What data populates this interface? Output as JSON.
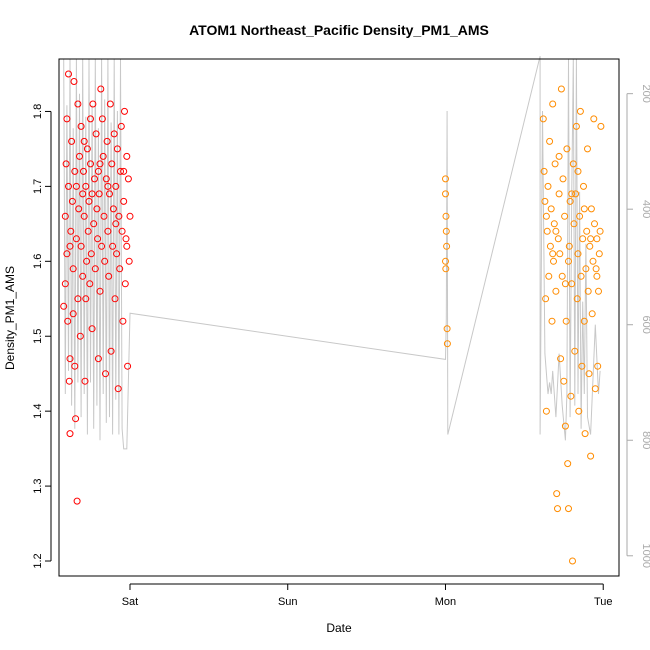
{
  "chart_data": {
    "type": "scatter",
    "title": "ATOM1 Northeast_Pacific Density_PM1_AMS",
    "xlabel": "Date",
    "ylabel": "Density_PM1_AMS",
    "x_axis": {
      "type": "day",
      "ticks": [
        "Sat",
        "Sun",
        "Mon",
        "Tue"
      ],
      "tick_days": [
        0,
        1,
        2,
        3
      ],
      "range_days": [
        -0.45,
        3.1
      ]
    },
    "y_axis": {
      "ticks": [
        "1.2",
        "1.3",
        "1.4",
        "1.5",
        "1.6",
        "1.7",
        "1.8"
      ],
      "range": [
        1.18,
        1.87
      ]
    },
    "y2_axis": {
      "ticks": [
        "200",
        "400",
        "600",
        "800",
        "1000"
      ],
      "reversed": true,
      "range": [
        140,
        1035
      ],
      "color": "#aaaaaa"
    },
    "grid": false,
    "legend": "none",
    "series": [
      {
        "color": "#ff0000",
        "points": [
          [
            -0.42,
            1.54
          ],
          [
            -0.41,
            1.57
          ],
          [
            -0.41,
            1.66
          ],
          [
            -0.405,
            1.73
          ],
          [
            -0.4,
            1.79
          ],
          [
            -0.4,
            1.61
          ],
          [
            -0.395,
            1.52
          ],
          [
            -0.39,
            1.85
          ],
          [
            -0.39,
            1.7
          ],
          [
            -0.385,
            1.44
          ],
          [
            -0.38,
            1.47
          ],
          [
            -0.38,
            1.37
          ],
          [
            -0.375,
            1.64
          ],
          [
            -0.37,
            1.76
          ],
          [
            -0.365,
            1.68
          ],
          [
            -0.36,
            1.59
          ],
          [
            -0.36,
            1.53
          ],
          [
            -0.355,
            1.84
          ],
          [
            -0.35,
            1.72
          ],
          [
            -0.35,
            1.46
          ],
          [
            -0.345,
            1.39
          ],
          [
            -0.34,
            1.63
          ],
          [
            -0.335,
            1.28
          ],
          [
            -0.33,
            1.81
          ],
          [
            -0.33,
            1.55
          ],
          [
            -0.325,
            1.67
          ],
          [
            -0.32,
            1.74
          ],
          [
            -0.315,
            1.5
          ],
          [
            -0.31,
            1.78
          ],
          [
            -0.31,
            1.62
          ],
          [
            -0.3,
            1.69
          ],
          [
            -0.3,
            1.58
          ],
          [
            -0.295,
            1.72
          ],
          [
            -0.29,
            1.66
          ],
          [
            -0.285,
            1.44
          ],
          [
            -0.28,
            1.55
          ],
          [
            -0.28,
            1.7
          ],
          [
            -0.275,
            1.6
          ],
          [
            -0.27,
            1.75
          ],
          [
            -0.265,
            1.64
          ],
          [
            -0.26,
            1.68
          ],
          [
            -0.255,
            1.57
          ],
          [
            -0.25,
            1.79
          ],
          [
            -0.25,
            1.73
          ],
          [
            -0.245,
            1.61
          ],
          [
            -0.24,
            1.51
          ],
          [
            -0.235,
            1.81
          ],
          [
            -0.23,
            1.65
          ],
          [
            -0.225,
            1.71
          ],
          [
            -0.22,
            1.59
          ],
          [
            -0.215,
            1.77
          ],
          [
            -0.21,
            1.67
          ],
          [
            -0.205,
            1.63
          ],
          [
            -0.2,
            1.47
          ],
          [
            -0.2,
            1.72
          ],
          [
            -0.195,
            1.69
          ],
          [
            -0.19,
            1.56
          ],
          [
            -0.185,
            1.83
          ],
          [
            -0.18,
            1.62
          ],
          [
            -0.175,
            1.79
          ],
          [
            -0.17,
            1.74
          ],
          [
            -0.165,
            1.66
          ],
          [
            -0.16,
            1.6
          ],
          [
            -0.155,
            1.45
          ],
          [
            -0.15,
            1.71
          ],
          [
            -0.145,
            1.76
          ],
          [
            -0.14,
            1.64
          ],
          [
            -0.135,
            1.58
          ],
          [
            -0.13,
            1.69
          ],
          [
            -0.125,
            1.81
          ],
          [
            -0.12,
            1.48
          ],
          [
            -0.115,
            1.73
          ],
          [
            -0.11,
            1.62
          ],
          [
            -0.105,
            1.67
          ],
          [
            -0.1,
            1.77
          ],
          [
            -0.095,
            1.55
          ],
          [
            -0.09,
            1.7
          ],
          [
            -0.085,
            1.61
          ],
          [
            -0.08,
            1.75
          ],
          [
            -0.075,
            1.43
          ],
          [
            -0.07,
            1.66
          ],
          [
            -0.065,
            1.59
          ],
          [
            -0.06,
            1.72
          ],
          [
            -0.055,
            1.78
          ],
          [
            -0.05,
            1.64
          ],
          [
            -0.045,
            1.52
          ],
          [
            -0.04,
            1.68
          ],
          [
            -0.035,
            1.8
          ],
          [
            -0.03,
            1.57
          ],
          [
            -0.025,
            1.63
          ],
          [
            -0.02,
            1.74
          ],
          [
            -0.015,
            1.46
          ],
          [
            -0.01,
            1.71
          ],
          [
            -0.005,
            1.6
          ],
          [
            0.0,
            1.66
          ],
          [
            -0.38,
            1.62
          ],
          [
            -0.34,
            1.7
          ],
          [
            -0.29,
            1.76
          ],
          [
            -0.24,
            1.69
          ],
          [
            -0.19,
            1.73
          ],
          [
            -0.14,
            1.7
          ],
          [
            -0.09,
            1.65
          ],
          [
            -0.04,
            1.72
          ],
          [
            -0.02,
            1.62
          ]
        ]
      },
      {
        "color": "#ff8c00",
        "points": [
          [
            2.0,
            1.71
          ],
          [
            2.0,
            1.69
          ],
          [
            2.003,
            1.66
          ],
          [
            2.005,
            1.64
          ],
          [
            2.007,
            1.62
          ],
          [
            2.0,
            1.6
          ],
          [
            2.002,
            1.59
          ],
          [
            2.01,
            1.51
          ],
          [
            2.012,
            1.49
          ],
          [
            2.62,
            1.79
          ],
          [
            2.625,
            1.72
          ],
          [
            2.63,
            1.68
          ],
          [
            2.635,
            1.55
          ],
          [
            2.64,
            1.4
          ],
          [
            2.645,
            1.64
          ],
          [
            2.65,
            1.7
          ],
          [
            2.655,
            1.58
          ],
          [
            2.66,
            1.76
          ],
          [
            2.665,
            1.62
          ],
          [
            2.67,
            1.67
          ],
          [
            2.675,
            1.52
          ],
          [
            2.68,
            1.81
          ],
          [
            2.685,
            1.6
          ],
          [
            2.69,
            1.65
          ],
          [
            2.695,
            1.73
          ],
          [
            2.7,
            1.56
          ],
          [
            2.705,
            1.29
          ],
          [
            2.71,
            1.27
          ],
          [
            2.715,
            1.63
          ],
          [
            2.72,
            1.69
          ],
          [
            2.725,
            1.61
          ],
          [
            2.73,
            1.47
          ],
          [
            2.735,
            1.83
          ],
          [
            2.74,
            1.58
          ],
          [
            2.745,
            1.71
          ],
          [
            2.75,
            1.44
          ],
          [
            2.755,
            1.66
          ],
          [
            2.76,
            1.38
          ],
          [
            2.765,
            1.52
          ],
          [
            2.77,
            1.75
          ],
          [
            2.775,
            1.33
          ],
          [
            2.78,
            1.27
          ],
          [
            2.785,
            1.62
          ],
          [
            2.79,
            1.68
          ],
          [
            2.795,
            1.42
          ],
          [
            2.8,
            1.57
          ],
          [
            2.805,
            1.2
          ],
          [
            2.81,
            1.73
          ],
          [
            2.815,
            1.65
          ],
          [
            2.82,
            1.48
          ],
          [
            2.825,
            1.69
          ],
          [
            2.83,
            1.78
          ],
          [
            2.835,
            1.55
          ],
          [
            2.84,
            1.61
          ],
          [
            2.845,
            1.4
          ],
          [
            2.85,
            1.66
          ],
          [
            2.855,
            1.8
          ],
          [
            2.86,
            1.58
          ],
          [
            2.865,
            1.46
          ],
          [
            2.87,
            1.63
          ],
          [
            2.875,
            1.7
          ],
          [
            2.88,
            1.52
          ],
          [
            2.885,
            1.37
          ],
          [
            2.89,
            1.59
          ],
          [
            2.895,
            1.64
          ],
          [
            2.9,
            1.75
          ],
          [
            2.905,
            1.56
          ],
          [
            2.91,
            1.45
          ],
          [
            2.915,
            1.62
          ],
          [
            2.92,
            1.34
          ],
          [
            2.925,
            1.67
          ],
          [
            2.93,
            1.53
          ],
          [
            2.935,
            1.6
          ],
          [
            2.94,
            1.79
          ],
          [
            2.945,
            1.65
          ],
          [
            2.95,
            1.43
          ],
          [
            2.955,
            1.59
          ],
          [
            2.96,
            1.63
          ],
          [
            2.965,
            1.46
          ],
          [
            2.97,
            1.56
          ],
          [
            2.975,
            1.61
          ],
          [
            2.98,
            1.64
          ],
          [
            2.985,
            1.78
          ],
          [
            2.64,
            1.66
          ],
          [
            2.68,
            1.61
          ],
          [
            2.72,
            1.74
          ],
          [
            2.76,
            1.57
          ],
          [
            2.8,
            1.69
          ],
          [
            2.84,
            1.72
          ],
          [
            2.88,
            1.67
          ],
          [
            2.92,
            1.63
          ],
          [
            2.96,
            1.58
          ],
          [
            2.7,
            1.64
          ],
          [
            2.78,
            1.6
          ]
        ]
      },
      {
        "color": "#c8c8c8",
        "axis": "y2",
        "points": [
          [
            -0.42,
            140
          ],
          [
            -0.41,
            720
          ],
          [
            -0.4,
            220
          ],
          [
            -0.39,
            680
          ],
          [
            -0.38,
            140
          ],
          [
            -0.37,
            740
          ],
          [
            -0.36,
            260
          ],
          [
            -0.35,
            780
          ],
          [
            -0.34,
            140
          ],
          [
            -0.33,
            700
          ],
          [
            -0.32,
            200
          ],
          [
            -0.31,
            760
          ],
          [
            -0.3,
            140
          ],
          [
            -0.29,
            720
          ],
          [
            -0.28,
            240
          ],
          [
            -0.27,
            790
          ],
          [
            -0.26,
            140
          ],
          [
            -0.25,
            700
          ],
          [
            -0.24,
            220
          ],
          [
            -0.23,
            780
          ],
          [
            -0.22,
            140
          ],
          [
            -0.21,
            740
          ],
          [
            -0.2,
            260
          ],
          [
            -0.19,
            800
          ],
          [
            -0.18,
            140
          ],
          [
            -0.17,
            720
          ],
          [
            -0.16,
            210
          ],
          [
            -0.15,
            770
          ],
          [
            -0.14,
            140
          ],
          [
            -0.13,
            760
          ],
          [
            -0.12,
            250
          ],
          [
            -0.11,
            790
          ],
          [
            -0.1,
            140
          ],
          [
            -0.09,
            730
          ],
          [
            -0.08,
            230
          ],
          [
            -0.07,
            790
          ],
          [
            -0.06,
            140
          ],
          [
            -0.05,
            780
          ],
          [
            -0.04,
            815
          ],
          [
            -0.02,
            815
          ],
          [
            0.0,
            580
          ],
          [
            2.6,
            135
          ],
          [
            2.615,
            230
          ],
          [
            2.63,
            650
          ],
          [
            2.65,
            720
          ],
          [
            2.66,
            700
          ],
          [
            2.67,
            720
          ],
          [
            2.68,
            680
          ],
          [
            2.7,
            760
          ],
          [
            2.72,
            650
          ],
          [
            2.74,
            740
          ],
          [
            2.76,
            800
          ],
          [
            2.77,
            720
          ],
          [
            2.78,
            140
          ],
          [
            2.79,
            760
          ],
          [
            2.8,
            380
          ],
          [
            2.81,
            140
          ],
          [
            2.82,
            740
          ],
          [
            2.83,
            140
          ],
          [
            2.84,
            720
          ],
          [
            2.85,
            370
          ],
          [
            2.86,
            780
          ],
          [
            2.87,
            560
          ],
          [
            2.88,
            720
          ],
          [
            2.89,
            460
          ],
          [
            2.9,
            760
          ],
          [
            2.92,
            790
          ],
          [
            2.95,
            600
          ],
          [
            2.97,
            720
          ],
          [
            2.98,
            680
          ],
          [
            2.0,
            660
          ],
          [
            2.005,
            590
          ],
          [
            2.01,
            230
          ],
          [
            2.015,
            790
          ],
          [
            2.6,
            790
          ]
        ]
      }
    ],
    "gaps": [
      [
        0.0,
        2.0
      ],
      [
        2.02,
        2.6
      ]
    ]
  }
}
